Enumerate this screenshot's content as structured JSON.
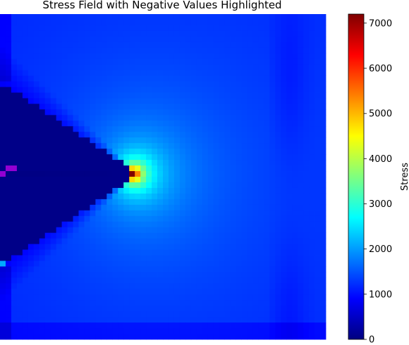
{
  "chart_data": {
    "type": "heatmap",
    "title": "Stress Field with Negative Values Highlighted",
    "grid_size": [
      58,
      58
    ],
    "crack_tip": {
      "col": 23.5,
      "row": 28.5
    },
    "peak_stress": 7200,
    "far_field_stress": 1000,
    "negative_highlight_color": "#9400d3",
    "negative_cells": [
      [
        1,
        27
      ],
      [
        2,
        27
      ],
      [
        0,
        28
      ]
    ],
    "highlight_cells": [
      [
        0,
        44,
        2100
      ]
    ],
    "colorbar": {
      "label": "Stress",
      "min": 0,
      "max": 7200,
      "ticks": [
        0,
        1000,
        2000,
        3000,
        4000,
        5000,
        6000,
        7000
      ],
      "tick_labels": [
        "0",
        "1000",
        "2000",
        "3000",
        "4000",
        "5000",
        "6000",
        "7000"
      ],
      "colormap": "jet",
      "colormap_stops": [
        "#00007f",
        "#0000ff",
        "#007fff",
        "#00ffff",
        "#7fff7f",
        "#ffff00",
        "#ff7f00",
        "#ff0000",
        "#7f0000"
      ]
    }
  }
}
